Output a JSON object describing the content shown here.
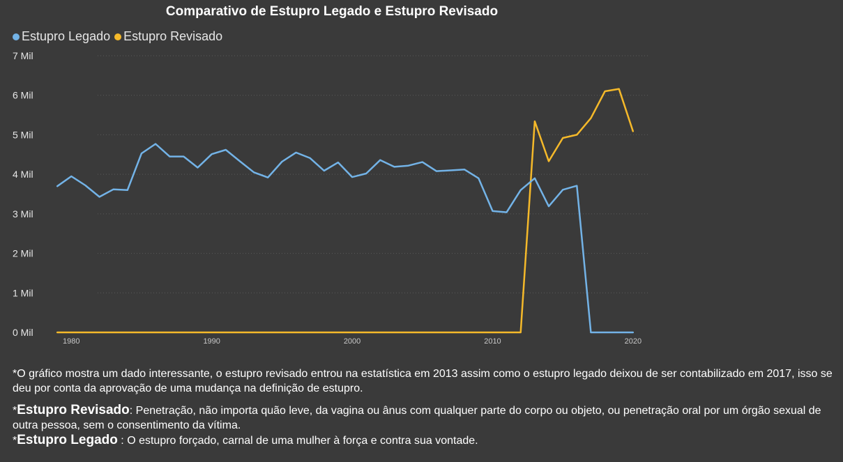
{
  "chart_data": {
    "type": "line",
    "title": "Comparativo de Estupro Legado e Estupro Revisado",
    "xlabel": "",
    "ylabel": "",
    "x": [
      1979,
      1980,
      1981,
      1982,
      1983,
      1984,
      1985,
      1986,
      1987,
      1988,
      1989,
      1990,
      1991,
      1992,
      1993,
      1994,
      1995,
      1996,
      1997,
      1998,
      1999,
      2000,
      2001,
      2002,
      2003,
      2004,
      2005,
      2006,
      2007,
      2008,
      2009,
      2010,
      2011,
      2012,
      2013,
      2014,
      2015,
      2016,
      2017,
      2018,
      2019,
      2020
    ],
    "x_ticks": [
      "1980",
      "1990",
      "2000",
      "2010",
      "2020"
    ],
    "x_tick_values": [
      1980,
      1990,
      2000,
      2010,
      2020
    ],
    "ylim": [
      0,
      7000
    ],
    "y_ticks": [
      0,
      1000,
      2000,
      3000,
      4000,
      5000,
      6000,
      7000
    ],
    "y_tick_labels": [
      "0 Mil",
      "1 Mil",
      "2 Mil",
      "3 Mil",
      "4 Mil",
      "5 Mil",
      "6 Mil",
      "7 Mil"
    ],
    "grid": "horizontal dotted",
    "legend_position": "top-left",
    "series": [
      {
        "name": "Estupro Legado",
        "color": "#73b3e7",
        "values": [
          3700,
          3950,
          3720,
          3430,
          3620,
          3600,
          4530,
          4770,
          4450,
          4450,
          4170,
          4510,
          4620,
          4330,
          4050,
          3920,
          4320,
          4550,
          4410,
          4090,
          4300,
          3930,
          4020,
          4360,
          4190,
          4220,
          4310,
          4080,
          4100,
          4120,
          3900,
          3070,
          3040,
          3600,
          3900,
          3190,
          3610,
          3710,
          0,
          0,
          0,
          0
        ]
      },
      {
        "name": "Estupro Revisado",
        "color": "#f5b92a",
        "values": [
          0,
          0,
          0,
          0,
          0,
          0,
          0,
          0,
          0,
          0,
          0,
          0,
          0,
          0,
          0,
          0,
          0,
          0,
          0,
          0,
          0,
          0,
          0,
          0,
          0,
          0,
          0,
          0,
          0,
          0,
          0,
          0,
          0,
          0,
          5340,
          4330,
          4920,
          5000,
          5420,
          6100,
          6160,
          5090
        ]
      }
    ]
  },
  "notes": {
    "observation": "*O gráfico mostra um dado interessante, o estupro revisado entrou na estatística em 2013  assim como o estupro legado deixou de ser contabilizado em 2017, isso se deu por conta da aprovação de uma mudança na definição de estupro.",
    "revised_prefix": "*",
    "revised_term": "Estupro Revisado",
    "revised_text": ": Penetração, não importa quão leve, da vagina ou ânus com qualquer parte do corpo ou objeto, ou penetração oral por um órgão sexual de outra pessoa, sem o consentimento da vítima.",
    "legacy_prefix": "*",
    "legacy_term": "Estupro Legado",
    "legacy_text": " : O estupro forçado, carnal de uma mulher à força e contra sua vontade."
  },
  "colors": {
    "background": "#3a3a3a",
    "grid": "#5a5a5a",
    "axis_text": "#e6e6e6"
  }
}
